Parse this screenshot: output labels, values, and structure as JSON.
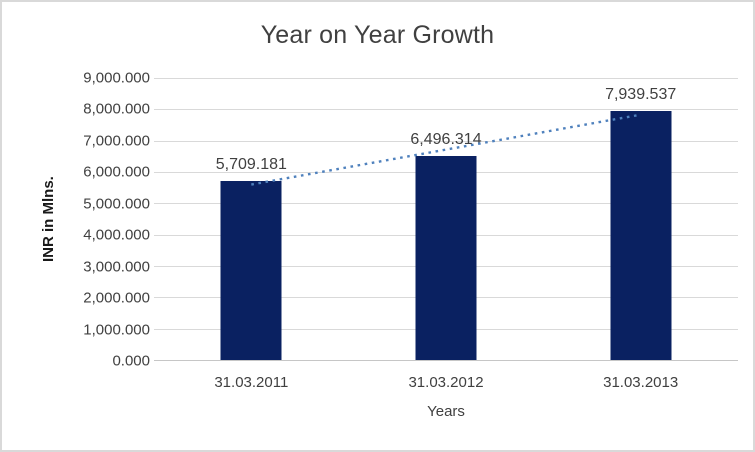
{
  "chart_data": {
    "type": "bar",
    "title": "Year on Year Growth",
    "xlabel": "Years",
    "ylabel": "INR in Mlns.",
    "categories": [
      "31.03.2011",
      "31.03.2012",
      "31.03.2013"
    ],
    "values": [
      5709.181,
      6496.314,
      7939.537
    ],
    "data_labels": [
      "5,709.181",
      "6,496.314",
      "7,939.537"
    ],
    "ylim": [
      0,
      9000
    ],
    "ytick_step": 1000,
    "ytick_labels": [
      "0.000",
      "1,000.000",
      "2,000.000",
      "3,000.000",
      "4,000.000",
      "5,000.000",
      "6,000.000",
      "7,000.000",
      "8,000.000",
      "9,000.000"
    ],
    "grid": true,
    "legend": "none",
    "trendline": {
      "type": "linear",
      "style": "dotted"
    },
    "colors": {
      "bar": "#0a2161",
      "trendline": "#4f81bd",
      "gridline": "#d9d9d9",
      "axis_line": "#c6c6c6",
      "title_text": "#404040",
      "tick_text": "#404040",
      "data_label_text": "#404040",
      "y_axis_title_text": "#1a1a1a",
      "background": "#ffffff",
      "frame_border": "#d9d9d9"
    }
  }
}
